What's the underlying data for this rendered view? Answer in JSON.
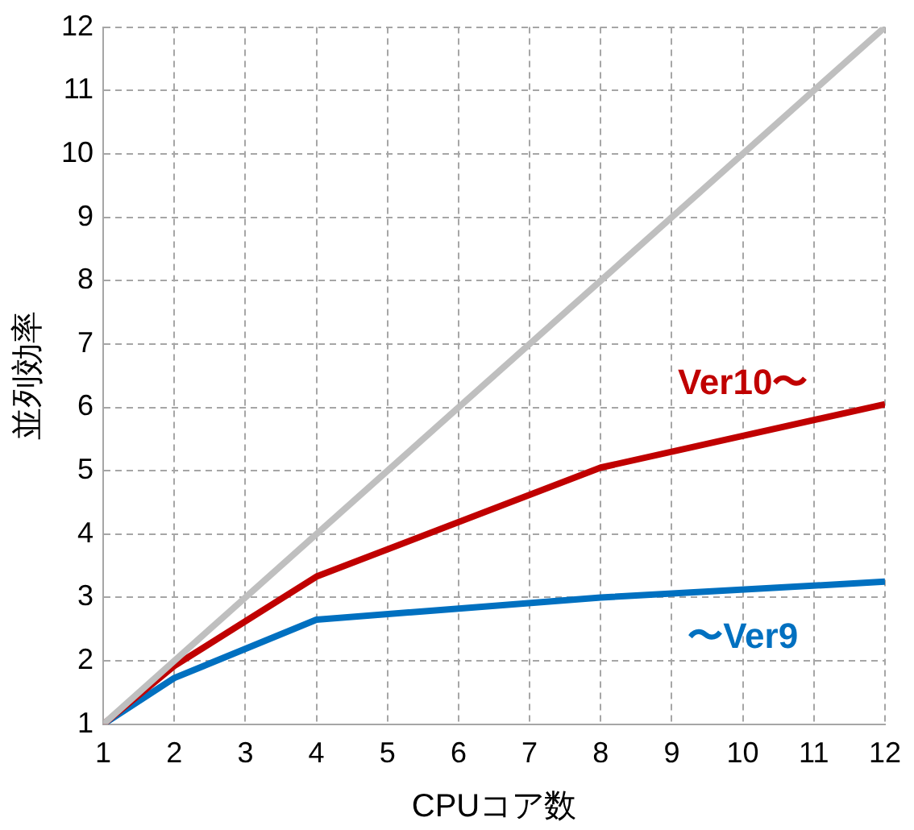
{
  "chart_data": {
    "type": "line",
    "xlabel": "CPUコア数",
    "ylabel": "並列効率",
    "xlim": [
      1,
      12
    ],
    "ylim": [
      1,
      12
    ],
    "xticks": [
      1,
      2,
      3,
      4,
      5,
      6,
      7,
      8,
      9,
      10,
      11,
      12
    ],
    "yticks": [
      1,
      2,
      3,
      4,
      5,
      6,
      7,
      8,
      9,
      10,
      11,
      12
    ],
    "grid": true,
    "legend": false,
    "marker": "none",
    "series": [
      {
        "color": "#bfbfbf",
        "x": [
          1,
          12
        ],
        "values": [
          1,
          12
        ]
      },
      {
        "name": "Ver10〜",
        "color": "#c00000",
        "x": [
          1,
          2,
          4,
          8,
          12
        ],
        "values": [
          1,
          1.92,
          3.33,
          5.05,
          6.05
        ]
      },
      {
        "name": "〜Ver9",
        "color": "#0070c0",
        "x": [
          1,
          2,
          4,
          8,
          12
        ],
        "values": [
          1,
          1.73,
          2.65,
          3.0,
          3.25
        ]
      }
    ]
  }
}
